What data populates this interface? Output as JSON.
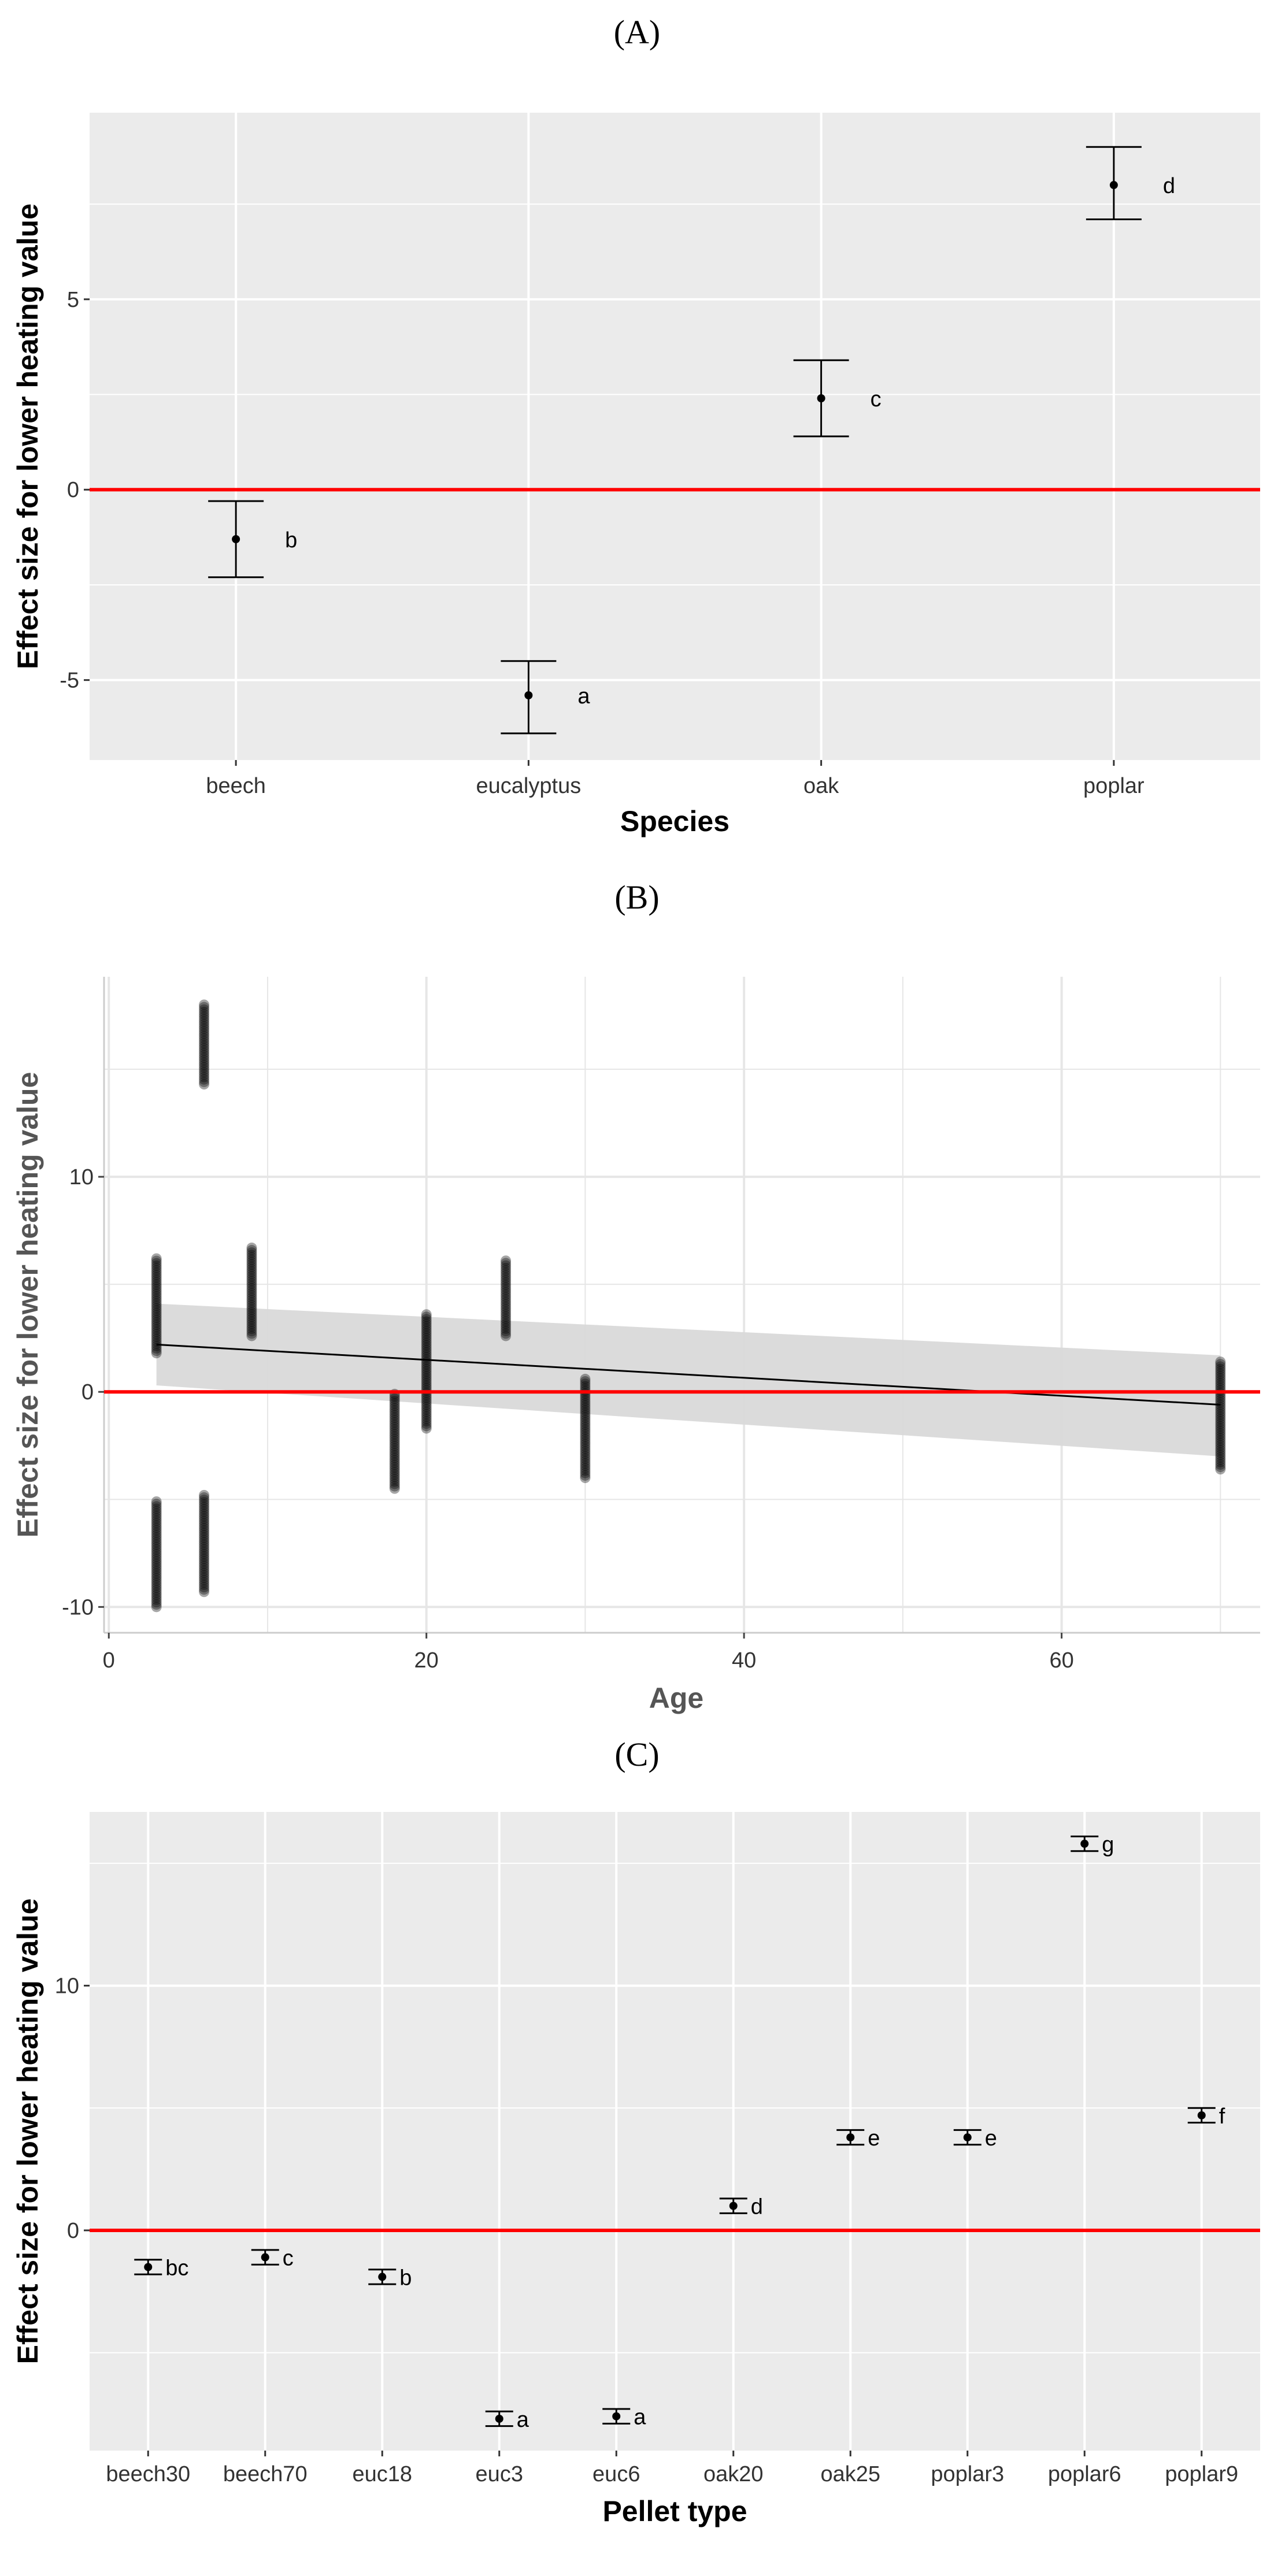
{
  "chart_data": [
    {
      "type": "scatter",
      "panel_label": "(A)",
      "title": "",
      "xlabel": "Species",
      "ylabel": "Effect size for lower heating value",
      "categories": [
        "beech",
        "eucalyptus",
        "oak",
        "poplar"
      ],
      "estimates": [
        -1.3,
        -5.4,
        2.4,
        8.0
      ],
      "lower": [
        -2.3,
        -6.4,
        1.4,
        7.1
      ],
      "upper": [
        -0.3,
        -4.5,
        3.4,
        9.0
      ],
      "group_labels": [
        "b",
        "a",
        "c",
        "d"
      ],
      "reference_line": 0,
      "yticks": [
        -5,
        0,
        5
      ],
      "ytick_labels": [
        "-5",
        "0",
        "5"
      ],
      "ylim": [
        -7.1,
        9.9
      ],
      "colors": {
        "panel": "#ebebeb",
        "grid": "#ffffff",
        "reference": "#ff0000",
        "mark": "#000000"
      }
    },
    {
      "type": "scatter",
      "panel_label": "(B)",
      "title": "",
      "xlabel": "Age",
      "ylabel": "Effect size for lower heating value",
      "xlim": [
        -0.3,
        72.5
      ],
      "ylim": [
        -11.2,
        19.3
      ],
      "xticks": [
        0,
        20,
        40,
        60
      ],
      "xtick_labels": [
        "0",
        "20",
        "40",
        "60"
      ],
      "yticks": [
        -10,
        0,
        10
      ],
      "ytick_labels": [
        "-10",
        "0",
        "10"
      ],
      "point_columns": [
        {
          "x": 3,
          "ranges": [
            [
              1.8,
              6.2
            ],
            [
              -10.0,
              -5.1
            ]
          ]
        },
        {
          "x": 6,
          "ranges": [
            [
              14.3,
              18.0
            ],
            [
              -9.3,
              -4.8
            ]
          ]
        },
        {
          "x": 9,
          "ranges": [
            [
              2.6,
              6.7
            ]
          ]
        },
        {
          "x": 18,
          "ranges": [
            [
              -4.5,
              -0.1
            ]
          ]
        },
        {
          "x": 20,
          "ranges": [
            [
              -1.7,
              3.6
            ]
          ]
        },
        {
          "x": 25,
          "ranges": [
            [
              2.6,
              6.1
            ]
          ]
        },
        {
          "x": 30,
          "ranges": [
            [
              -4.0,
              0.6
            ]
          ]
        },
        {
          "x": 70,
          "ranges": [
            [
              -3.6,
              1.4
            ]
          ]
        }
      ],
      "fit_line": {
        "x": [
          3,
          70
        ],
        "y": [
          2.2,
          -0.6
        ]
      },
      "confidence_band": {
        "x": [
          3,
          70
        ],
        "lower": [
          0.3,
          -3.0
        ],
        "upper": [
          4.1,
          1.7
        ]
      },
      "reference_line": 0,
      "colors": {
        "panel": "#ffffff",
        "grid": "#e6e6e6",
        "band": "#d9d9d9",
        "reference": "#ff0000",
        "points": "#000000"
      }
    },
    {
      "type": "scatter",
      "panel_label": "(C)",
      "title": "",
      "xlabel": "Pellet type",
      "ylabel": "Effect size for lower heating value",
      "categories": [
        "beech30",
        "beech70",
        "euc18",
        "euc3",
        "euc6",
        "oak20",
        "oak25",
        "poplar3",
        "poplar6",
        "poplar9"
      ],
      "estimates": [
        -1.5,
        -1.1,
        -1.9,
        -7.7,
        -7.6,
        1.0,
        3.8,
        3.8,
        15.8,
        4.7
      ],
      "lower": [
        -1.8,
        -1.4,
        -2.2,
        -8.0,
        -7.9,
        0.7,
        3.5,
        3.5,
        15.5,
        4.4
      ],
      "upper": [
        -1.2,
        -0.8,
        -1.6,
        -7.4,
        -7.3,
        1.3,
        4.1,
        4.1,
        16.1,
        5.0
      ],
      "group_labels": [
        "bc",
        "c",
        "b",
        "a",
        "a",
        "d",
        "e",
        "e",
        "g",
        "f"
      ],
      "reference_line": 0,
      "yticks": [
        0,
        10
      ],
      "ytick_labels": [
        "0",
        "10"
      ],
      "ylim": [
        -9.0,
        17.1
      ],
      "colors": {
        "panel": "#ebebeb",
        "grid": "#ffffff",
        "reference": "#ff0000",
        "mark": "#000000"
      }
    }
  ]
}
